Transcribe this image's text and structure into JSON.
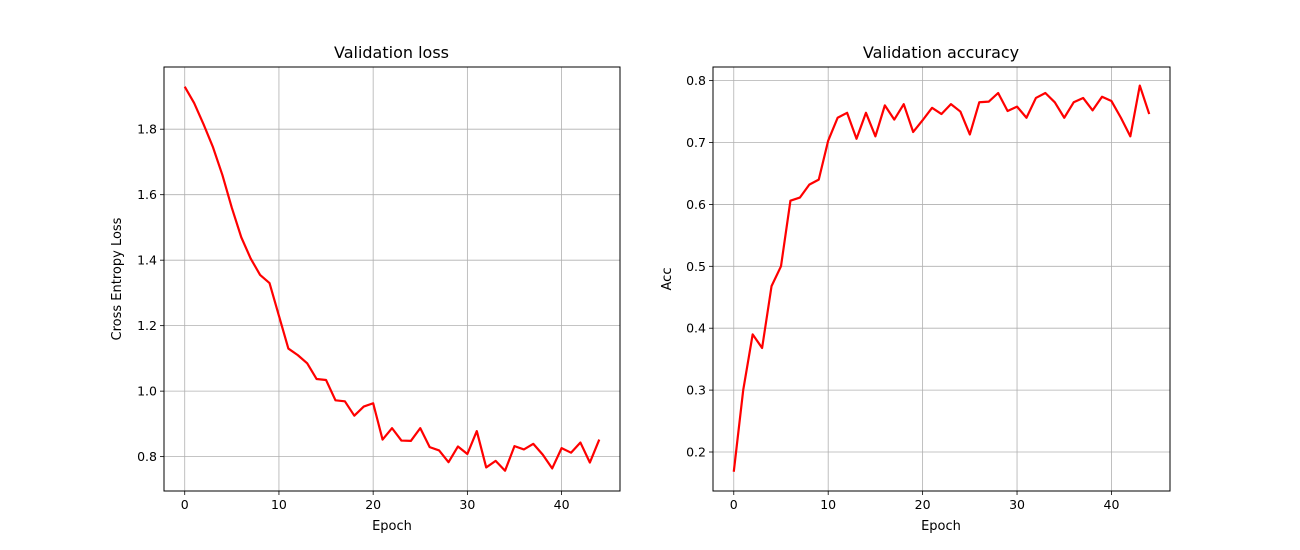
{
  "chart_data": [
    {
      "type": "line",
      "title": "Validation loss",
      "xlabel": "Epoch",
      "ylabel": "Cross Entropy Loss",
      "xlim": [
        -2.2,
        46.2
      ],
      "ylim": [
        0.695,
        1.99
      ],
      "xticks": [
        0,
        10,
        20,
        30,
        40
      ],
      "yticks": [
        0.8,
        1.0,
        1.2,
        1.4,
        1.6,
        1.8
      ],
      "xtick_labels": [
        "0",
        "10",
        "20",
        "30",
        "40"
      ],
      "ytick_labels": [
        "0.8",
        "1.0",
        "1.2",
        "1.4",
        "1.6",
        "1.8"
      ],
      "grid": true,
      "color": "#ff0000",
      "x": [
        0,
        1,
        2,
        3,
        4,
        5,
        6,
        7,
        8,
        9,
        10,
        11,
        12,
        13,
        14,
        15,
        16,
        17,
        18,
        19,
        20,
        21,
        22,
        23,
        24,
        25,
        26,
        27,
        28,
        29,
        30,
        31,
        32,
        33,
        34,
        35,
        36,
        37,
        38,
        39,
        40,
        41,
        42,
        43,
        44
      ],
      "y": [
        1.93,
        1.88,
        1.815,
        1.745,
        1.66,
        1.56,
        1.47,
        1.405,
        1.355,
        1.33,
        1.23,
        1.13,
        1.11,
        1.085,
        1.037,
        1.034,
        0.972,
        0.969,
        0.925,
        0.953,
        0.963,
        0.852,
        0.887,
        0.849,
        0.848,
        0.887,
        0.829,
        0.819,
        0.783,
        0.831,
        0.808,
        0.878,
        0.767,
        0.787,
        0.757,
        0.832,
        0.822,
        0.839,
        0.806,
        0.764,
        0.826,
        0.812,
        0.843,
        0.782,
        0.852
      ]
    },
    {
      "type": "line",
      "title": "Validation accuracy",
      "xlabel": "Epoch",
      "ylabel": "Acc",
      "xlim": [
        -2.2,
        46.2
      ],
      "ylim": [
        0.137,
        0.822
      ],
      "xticks": [
        0,
        10,
        20,
        30,
        40
      ],
      "yticks": [
        0.2,
        0.3,
        0.4,
        0.5,
        0.6,
        0.7,
        0.8
      ],
      "xtick_labels": [
        "0",
        "10",
        "20",
        "30",
        "40"
      ],
      "ytick_labels": [
        "0.2",
        "0.3",
        "0.4",
        "0.5",
        "0.6",
        "0.7",
        "0.8"
      ],
      "grid": true,
      "color": "#ff0000",
      "x": [
        0,
        1,
        2,
        3,
        4,
        5,
        6,
        7,
        8,
        9,
        10,
        11,
        12,
        13,
        14,
        15,
        16,
        17,
        18,
        19,
        20,
        21,
        22,
        23,
        24,
        25,
        26,
        27,
        28,
        29,
        30,
        31,
        32,
        33,
        34,
        35,
        36,
        37,
        38,
        39,
        40,
        41,
        42,
        43,
        44
      ],
      "y": [
        0.168,
        0.3,
        0.39,
        0.368,
        0.468,
        0.5,
        0.606,
        0.611,
        0.632,
        0.64,
        0.703,
        0.74,
        0.748,
        0.706,
        0.748,
        0.71,
        0.76,
        0.737,
        0.762,
        0.717,
        0.736,
        0.756,
        0.746,
        0.762,
        0.75,
        0.713,
        0.765,
        0.766,
        0.78,
        0.751,
        0.758,
        0.74,
        0.772,
        0.78,
        0.765,
        0.74,
        0.765,
        0.772,
        0.752,
        0.774,
        0.767,
        0.74,
        0.71,
        0.792,
        0.746
      ]
    }
  ]
}
